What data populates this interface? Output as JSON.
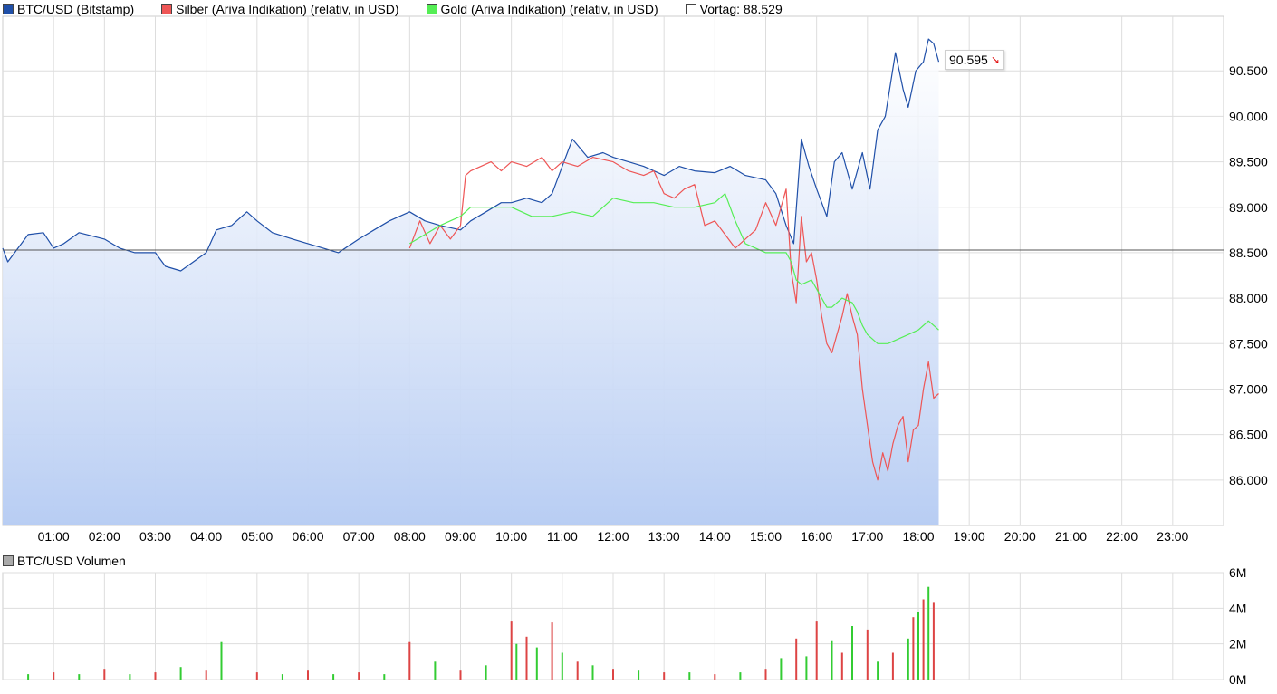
{
  "legend": [
    {
      "label": "BTC/USD (Bitstamp)",
      "color": "#1f4fa8"
    },
    {
      "label": "Silber (Ariva Indikation) (relativ, in USD)",
      "color": "#ee5555"
    },
    {
      "label": "Gold (Ariva Indikation) (relativ, in USD)",
      "color": "#55ee55"
    },
    {
      "label": "Vortag: 88.529",
      "color": "#ffffff"
    }
  ],
  "volume_legend": "BTC/USD Volumen",
  "last_value": "90.595",
  "chart_data": [
    {
      "type": "line",
      "x_ticks": [
        "01:00",
        "02:00",
        "03:00",
        "04:00",
        "05:00",
        "06:00",
        "07:00",
        "08:00",
        "09:00",
        "10:00",
        "11:00",
        "12:00",
        "13:00",
        "14:00",
        "15:00",
        "16:00",
        "17:00",
        "18:00",
        "19:00",
        "20:00",
        "21:00",
        "22:00",
        "23:00"
      ],
      "y_ticks": [
        "86.000",
        "86.500",
        "87.000",
        "87.500",
        "88.000",
        "88.500",
        "89.000",
        "89.500",
        "90.000",
        "90.500"
      ],
      "xlim": [
        0,
        24
      ],
      "ylim": [
        85.5,
        91.1
      ],
      "reference_line": 88.529,
      "grid": true,
      "legend_position": "top-left",
      "series": [
        {
          "name": "BTC/USD (Bitstamp)",
          "color": "#1f4fa8",
          "fill": true,
          "x": [
            0,
            0.1,
            0.5,
            0.8,
            1.0,
            1.2,
            1.5,
            2.0,
            2.3,
            2.6,
            3.0,
            3.2,
            3.5,
            4.0,
            4.2,
            4.5,
            4.8,
            5.0,
            5.3,
            5.7,
            6.0,
            6.3,
            6.6,
            7.0,
            7.3,
            7.6,
            8.0,
            8.3,
            8.6,
            9.0,
            9.2,
            9.5,
            9.8,
            10.0,
            10.3,
            10.6,
            10.8,
            11.0,
            11.2,
            11.5,
            11.8,
            12.0,
            12.3,
            12.6,
            13.0,
            13.3,
            13.6,
            14.0,
            14.3,
            14.6,
            15.0,
            15.2,
            15.4,
            15.55,
            15.7,
            15.85,
            16.0,
            16.2,
            16.35,
            16.5,
            16.7,
            16.9,
            17.05,
            17.2,
            17.35,
            17.55,
            17.7,
            17.8,
            17.95,
            18.1,
            18.2,
            18.3,
            18.4
          ],
          "y": [
            88.55,
            88.4,
            88.7,
            88.72,
            88.55,
            88.6,
            88.72,
            88.65,
            88.55,
            88.5,
            88.5,
            88.35,
            88.3,
            88.5,
            88.75,
            88.8,
            88.95,
            88.85,
            88.72,
            88.65,
            88.6,
            88.55,
            88.5,
            88.65,
            88.75,
            88.85,
            88.95,
            88.85,
            88.8,
            88.75,
            88.85,
            88.95,
            89.05,
            89.05,
            89.1,
            89.05,
            89.15,
            89.45,
            89.75,
            89.55,
            89.6,
            89.55,
            89.5,
            89.45,
            89.35,
            89.45,
            89.4,
            89.38,
            89.45,
            89.35,
            89.3,
            89.15,
            88.8,
            88.6,
            89.75,
            89.45,
            89.2,
            88.9,
            89.5,
            89.6,
            89.2,
            89.6,
            89.2,
            89.85,
            90.0,
            90.7,
            90.3,
            90.1,
            90.5,
            90.6,
            90.85,
            90.8,
            90.6
          ]
        },
        {
          "name": "Silber (Ariva Indikation) (relativ, in USD)",
          "color": "#ee5555",
          "fill": false,
          "x": [
            8.0,
            8.2,
            8.4,
            8.6,
            8.8,
            9.0,
            9.1,
            9.2,
            9.4,
            9.6,
            9.8,
            10.0,
            10.3,
            10.6,
            10.8,
            11.0,
            11.3,
            11.6,
            12.0,
            12.3,
            12.6,
            12.8,
            13.0,
            13.2,
            13.4,
            13.6,
            13.8,
            14.0,
            14.2,
            14.4,
            14.6,
            14.8,
            15.0,
            15.2,
            15.4,
            15.5,
            15.6,
            15.7,
            15.8,
            15.9,
            16.0,
            16.1,
            16.2,
            16.3,
            16.4,
            16.5,
            16.6,
            16.7,
            16.8,
            16.9,
            17.0,
            17.1,
            17.2,
            17.3,
            17.4,
            17.5,
            17.6,
            17.7,
            17.8,
            17.9,
            18.0,
            18.1,
            18.2,
            18.3,
            18.4
          ],
          "y": [
            88.55,
            88.85,
            88.6,
            88.8,
            88.65,
            88.8,
            89.35,
            89.4,
            89.45,
            89.5,
            89.4,
            89.5,
            89.45,
            89.55,
            89.4,
            89.5,
            89.45,
            89.55,
            89.5,
            89.4,
            89.35,
            89.4,
            89.15,
            89.1,
            89.2,
            89.25,
            88.8,
            88.85,
            88.7,
            88.55,
            88.65,
            88.75,
            89.05,
            88.8,
            89.2,
            88.3,
            87.95,
            88.9,
            88.4,
            88.5,
            88.2,
            87.8,
            87.5,
            87.4,
            87.6,
            87.8,
            88.05,
            87.8,
            87.6,
            87.0,
            86.6,
            86.2,
            86.0,
            86.3,
            86.1,
            86.4,
            86.6,
            86.7,
            86.2,
            86.55,
            86.6,
            87.0,
            87.3,
            86.9,
            86.95
          ]
        },
        {
          "name": "Gold (Ariva Indikation) (relativ, in USD)",
          "color": "#55ee55",
          "fill": false,
          "x": [
            8.0,
            8.3,
            8.6,
            9.0,
            9.2,
            9.5,
            9.8,
            10.0,
            10.4,
            10.8,
            11.2,
            11.6,
            12.0,
            12.4,
            12.8,
            13.2,
            13.6,
            14.0,
            14.2,
            14.4,
            14.6,
            14.8,
            15.0,
            15.2,
            15.4,
            15.5,
            15.6,
            15.7,
            15.9,
            16.0,
            16.2,
            16.3,
            16.5,
            16.7,
            16.8,
            16.9,
            17.0,
            17.2,
            17.4,
            17.6,
            17.8,
            18.0,
            18.2,
            18.4
          ],
          "y": [
            88.6,
            88.7,
            88.8,
            88.9,
            89.0,
            89.0,
            89.0,
            89.0,
            88.9,
            88.9,
            88.95,
            88.9,
            89.1,
            89.05,
            89.05,
            89.0,
            89.0,
            89.05,
            89.15,
            88.85,
            88.6,
            88.55,
            88.5,
            88.5,
            88.5,
            88.4,
            88.2,
            88.15,
            88.2,
            88.1,
            87.9,
            87.9,
            88.0,
            87.95,
            87.85,
            87.7,
            87.6,
            87.5,
            87.5,
            87.55,
            87.6,
            87.65,
            87.75,
            87.65
          ]
        }
      ]
    },
    {
      "type": "bar",
      "title": "BTC/USD Volumen",
      "y_ticks": [
        "0M",
        "2M",
        "4M",
        "6M"
      ],
      "ylim": [
        0,
        6
      ],
      "xlim": [
        0,
        24
      ],
      "colors": {
        "up": "#33cc33",
        "down": "#dd4444"
      },
      "x": [
        0.5,
        1.0,
        1.5,
        2.0,
        2.5,
        3.0,
        3.5,
        4.0,
        4.3,
        5.0,
        5.5,
        6.0,
        6.5,
        7.0,
        7.5,
        8.0,
        8.5,
        9.0,
        9.5,
        10.0,
        10.1,
        10.3,
        10.5,
        10.8,
        11.0,
        11.3,
        11.6,
        12.0,
        12.5,
        13.0,
        13.5,
        14.0,
        14.5,
        15.0,
        15.3,
        15.6,
        15.8,
        16.0,
        16.3,
        16.5,
        16.7,
        17.0,
        17.2,
        17.5,
        17.8,
        17.9,
        18.0,
        18.1,
        18.2,
        18.3
      ],
      "values": [
        0.3,
        0.4,
        0.3,
        0.6,
        0.3,
        0.4,
        0.7,
        0.5,
        2.1,
        0.4,
        0.3,
        0.5,
        0.3,
        0.4,
        0.3,
        2.1,
        1.0,
        0.5,
        0.8,
        3.3,
        2.0,
        2.4,
        1.8,
        3.2,
        1.5,
        1.0,
        0.8,
        0.6,
        0.5,
        0.4,
        0.4,
        0.3,
        0.4,
        0.6,
        1.2,
        2.3,
        1.3,
        3.3,
        2.2,
        1.5,
        3.0,
        2.8,
        1.0,
        1.5,
        2.3,
        3.5,
        3.8,
        4.5,
        5.2,
        4.3
      ]
    }
  ]
}
